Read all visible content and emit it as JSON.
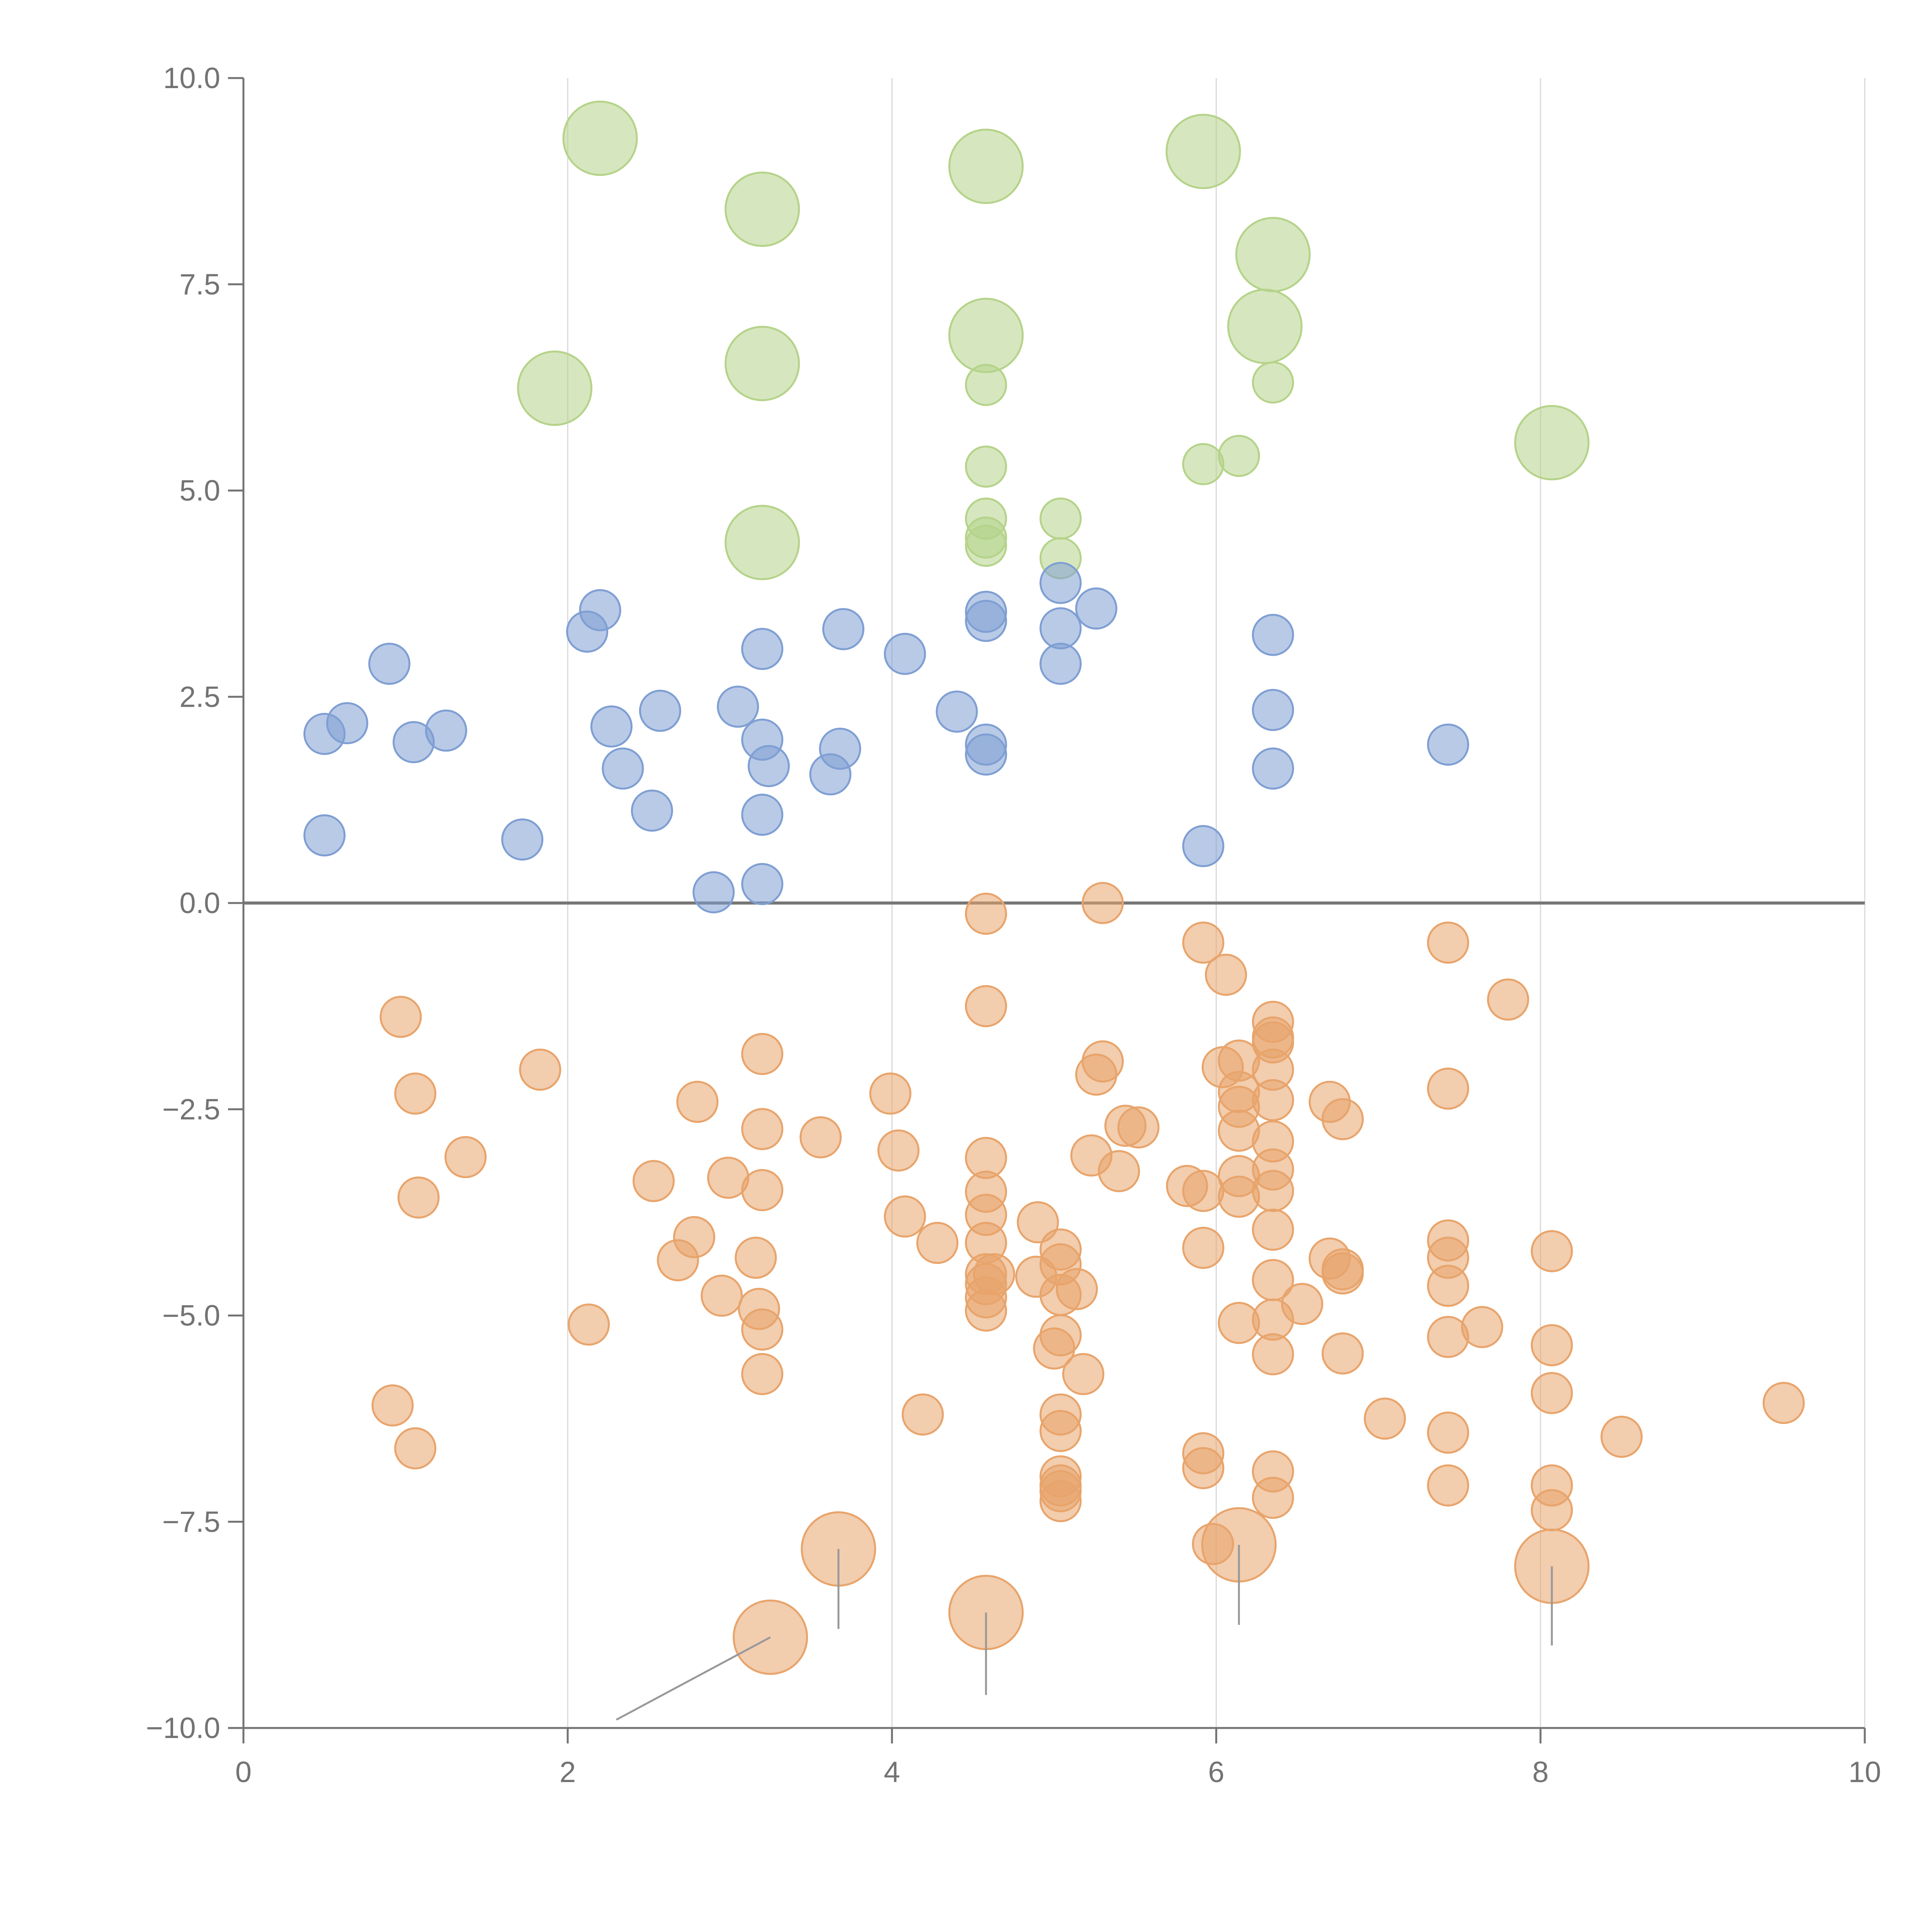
{
  "chart_data": {
    "type": "scatter",
    "title": "",
    "xlabel": "",
    "ylabel": "",
    "xlim": [
      0,
      10
    ],
    "ylim": [
      -10,
      10
    ],
    "grid": {
      "x": true,
      "y": false
    },
    "zero_line": true,
    "x_ticks": [
      0,
      2,
      4,
      6,
      8,
      10
    ],
    "x_tick_labels": [
      "0",
      "2",
      "4",
      "6",
      "8",
      "10"
    ],
    "y_ticks": [
      10,
      7.5,
      5,
      2.5,
      0,
      -2.5,
      -5,
      -7.5,
      -10
    ],
    "y_tick_labels": [
      "10.0",
      "7.5",
      "5.0",
      "2.5",
      "0.0",
      "−2.5",
      "−5.0",
      "−7.5",
      "−10.0"
    ],
    "colors": {
      "blue": "#7f9fd3",
      "green": "#b5d38a",
      "orange": "#e8a46b",
      "axis": "#737373",
      "grid": "#d9d9d9",
      "zero": "#777777"
    },
    "series": [
      {
        "name": "green",
        "color": "#b5d38a",
        "size": "small",
        "points": [
          [
            4.58,
            6.28
          ],
          [
            4.58,
            5.29
          ],
          [
            4.58,
            4.66
          ],
          [
            4.58,
            4.43
          ],
          [
            4.58,
            4.33
          ],
          [
            5.04,
            4.66
          ],
          [
            5.04,
            4.18
          ],
          [
            5.92,
            5.32
          ],
          [
            6.14,
            5.42
          ],
          [
            6.35,
            6.31
          ]
        ]
      },
      {
        "name": "green-large",
        "color": "#b5d38a",
        "size": "large",
        "points": [
          [
            2.2,
            9.27
          ],
          [
            3.2,
            8.41
          ],
          [
            4.58,
            8.93
          ],
          [
            5.92,
            9.11
          ],
          [
            6.35,
            7.86
          ],
          [
            6.3,
            6.99
          ],
          [
            4.58,
            6.88
          ],
          [
            3.2,
            6.54
          ],
          [
            1.92,
            6.24
          ],
          [
            8.07,
            5.58
          ],
          [
            3.2,
            4.37
          ]
        ]
      },
      {
        "name": "blue",
        "color": "#7f9fd3",
        "size": "small",
        "points": [
          [
            0.5,
            2.05
          ],
          [
            0.64,
            2.18
          ],
          [
            0.9,
            2.9
          ],
          [
            1.05,
            1.95
          ],
          [
            1.25,
            2.09
          ],
          [
            0.5,
            0.82
          ],
          [
            1.72,
            0.77
          ],
          [
            2.12,
            3.29
          ],
          [
            2.2,
            3.55
          ],
          [
            2.27,
            2.14
          ],
          [
            2.34,
            1.63
          ],
          [
            2.52,
            1.12
          ],
          [
            2.57,
            2.33
          ],
          [
            2.9,
            0.13
          ],
          [
            3.05,
            2.38
          ],
          [
            3.2,
            3.08
          ],
          [
            3.2,
            1.98
          ],
          [
            3.24,
            1.66
          ],
          [
            3.2,
            1.07
          ],
          [
            3.2,
            0.23
          ],
          [
            3.62,
            1.56
          ],
          [
            3.68,
            1.87
          ],
          [
            3.7,
            3.32
          ],
          [
            4.08,
            3.02
          ],
          [
            4.4,
            2.32
          ],
          [
            4.58,
            3.53
          ],
          [
            4.58,
            3.42
          ],
          [
            4.58,
            1.92
          ],
          [
            4.58,
            1.8
          ],
          [
            5.04,
            3.88
          ],
          [
            5.04,
            3.33
          ],
          [
            5.04,
            2.9
          ],
          [
            5.26,
            3.57
          ],
          [
            5.92,
            0.69
          ],
          [
            6.35,
            3.25
          ],
          [
            6.35,
            2.34
          ],
          [
            6.35,
            1.63
          ],
          [
            7.43,
            1.92
          ]
        ]
      },
      {
        "name": "orange",
        "color": "#e8a46b",
        "size": "small",
        "points": [
          [
            0.97,
            -1.38
          ],
          [
            1.06,
            -2.31
          ],
          [
            1.08,
            -3.57
          ],
          [
            1.37,
            -3.08
          ],
          [
            0.92,
            -6.09
          ],
          [
            1.06,
            -6.61
          ],
          [
            1.83,
            -2.02
          ],
          [
            2.13,
            -5.11
          ],
          [
            2.53,
            -3.37
          ],
          [
            2.68,
            -4.33
          ],
          [
            2.78,
            -4.05
          ],
          [
            2.8,
            -2.41
          ],
          [
            2.95,
            -4.76
          ],
          [
            2.99,
            -3.33
          ],
          [
            3.16,
            -4.3
          ],
          [
            3.18,
            -4.92
          ],
          [
            3.2,
            -1.83
          ],
          [
            3.2,
            -2.74
          ],
          [
            3.2,
            -3.48
          ],
          [
            3.2,
            -5.17
          ],
          [
            3.2,
            -5.71
          ],
          [
            3.56,
            -2.84
          ],
          [
            3.99,
            -2.31
          ],
          [
            4.04,
            -3.0
          ],
          [
            4.08,
            -3.8
          ],
          [
            4.28,
            -4.12
          ],
          [
            4.19,
            -6.2
          ],
          [
            4.58,
            -0.13
          ],
          [
            4.58,
            -1.25
          ],
          [
            4.58,
            -3.09
          ],
          [
            4.58,
            -3.5
          ],
          [
            4.58,
            -3.78
          ],
          [
            4.58,
            -4.12
          ],
          [
            4.58,
            -4.5
          ],
          [
            4.58,
            -4.62
          ],
          [
            4.58,
            -4.78
          ],
          [
            4.58,
            -4.94
          ],
          [
            4.63,
            -4.5
          ],
          [
            4.9,
            -3.87
          ],
          [
            4.89,
            -4.53
          ],
          [
            5.04,
            -4.2
          ],
          [
            5.04,
            -4.38
          ],
          [
            5.04,
            -4.75
          ],
          [
            5.14,
            -4.68
          ],
          [
            5.04,
            -5.24
          ],
          [
            5.0,
            -5.4
          ],
          [
            5.18,
            -5.71
          ],
          [
            5.04,
            -6.2
          ],
          [
            5.04,
            -6.4
          ],
          [
            5.04,
            -6.95
          ],
          [
            5.04,
            -7.06
          ],
          [
            5.04,
            -7.13
          ],
          [
            5.04,
            -7.25
          ],
          [
            5.3,
            0.0
          ],
          [
            5.3,
            -1.92
          ],
          [
            5.26,
            -2.08
          ],
          [
            5.23,
            -3.06
          ],
          [
            5.4,
            -3.25
          ],
          [
            5.44,
            -2.7
          ],
          [
            5.52,
            -2.72
          ],
          [
            5.82,
            -3.43
          ],
          [
            5.92,
            -0.48
          ],
          [
            5.92,
            -3.49
          ],
          [
            5.92,
            -4.18
          ],
          [
            5.92,
            -6.67
          ],
          [
            5.92,
            -6.85
          ],
          [
            6.06,
            -0.87
          ],
          [
            6.04,
            -1.99
          ],
          [
            6.14,
            -1.91
          ],
          [
            6.14,
            -2.29
          ],
          [
            6.14,
            -2.47
          ],
          [
            6.14,
            -2.76
          ],
          [
            6.14,
            -3.31
          ],
          [
            6.14,
            -3.56
          ],
          [
            6.14,
            -5.09
          ],
          [
            5.98,
            -7.77
          ],
          [
            6.35,
            -1.44
          ],
          [
            6.35,
            -1.63
          ],
          [
            6.35,
            -1.69
          ],
          [
            6.35,
            -2.02
          ],
          [
            6.35,
            -2.39
          ],
          [
            6.35,
            -2.89
          ],
          [
            6.35,
            -3.23
          ],
          [
            6.35,
            -3.49
          ],
          [
            6.35,
            -3.96
          ],
          [
            6.35,
            -4.57
          ],
          [
            6.35,
            -5.05
          ],
          [
            6.35,
            -5.47
          ],
          [
            6.35,
            -6.89
          ],
          [
            6.35,
            -7.21
          ],
          [
            6.53,
            -4.86
          ],
          [
            6.7,
            -2.41
          ],
          [
            6.7,
            -4.31
          ],
          [
            6.78,
            -2.62
          ],
          [
            6.78,
            -4.44
          ],
          [
            6.78,
            -4.49
          ],
          [
            6.78,
            -5.46
          ],
          [
            7.04,
            -6.25
          ],
          [
            7.43,
            -0.48
          ],
          [
            7.43,
            -2.25
          ],
          [
            7.43,
            -4.09
          ],
          [
            7.43,
            -4.3
          ],
          [
            7.43,
            -4.64
          ],
          [
            7.43,
            -5.26
          ],
          [
            7.43,
            -6.42
          ],
          [
            7.43,
            -7.06
          ],
          [
            7.64,
            -5.14
          ],
          [
            7.8,
            -1.17
          ],
          [
            8.07,
            -4.22
          ],
          [
            8.07,
            -5.36
          ],
          [
            8.07,
            -5.94
          ],
          [
            8.07,
            -7.06
          ],
          [
            8.07,
            -7.36
          ],
          [
            8.5,
            -6.47
          ],
          [
            9.5,
            -6.06
          ]
        ]
      },
      {
        "name": "orange-large",
        "color": "#e8a46b",
        "size": "large",
        "points": [
          [
            3.67,
            -7.83
          ],
          [
            3.25,
            -8.9
          ],
          [
            4.58,
            -8.6
          ],
          [
            6.14,
            -7.78
          ],
          [
            8.07,
            -8.04
          ]
        ]
      }
    ]
  }
}
